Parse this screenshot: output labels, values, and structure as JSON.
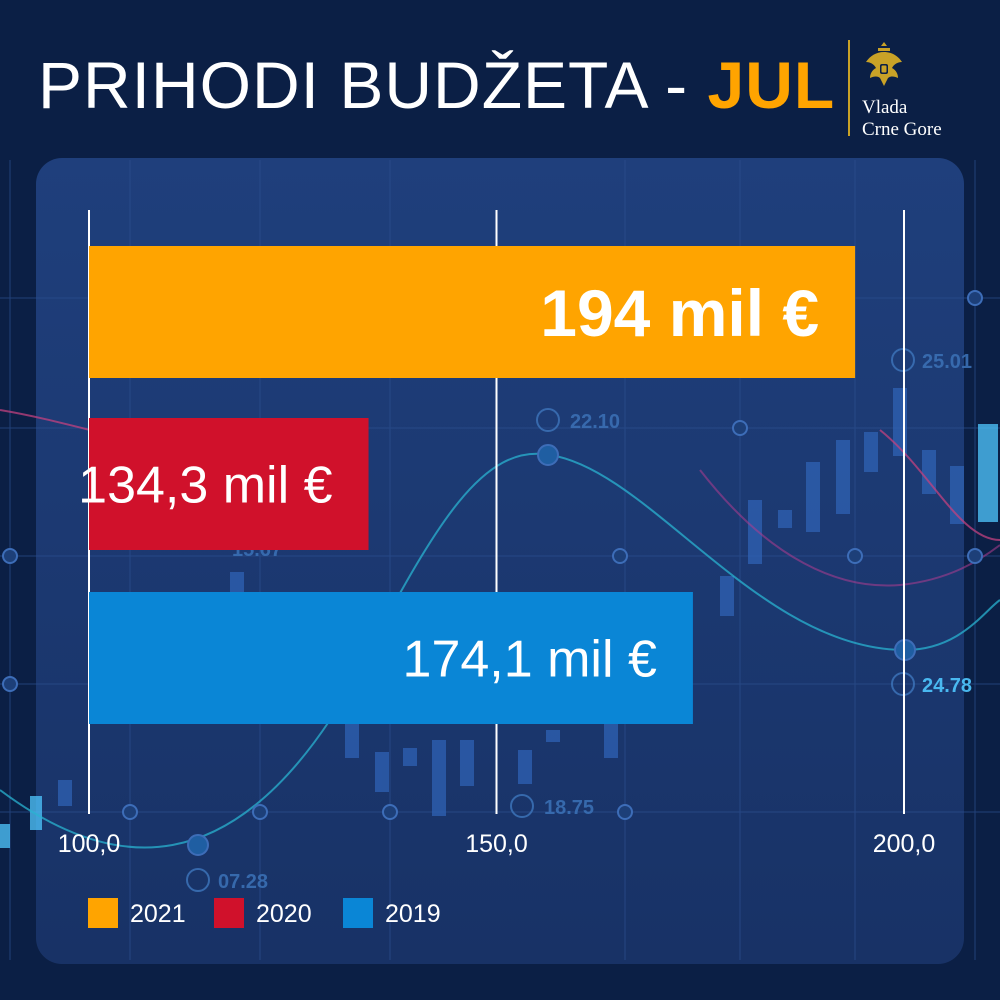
{
  "title": {
    "main": "PRIHODI BUDŽETA - ",
    "accent": "JUL"
  },
  "logo": {
    "icon": "montenegro-coat-of-arms-icon",
    "line1": "Vlada",
    "line2": "Crne Gore",
    "color": "#c9a227"
  },
  "background_decor": {
    "labels": [
      "25.01",
      "22.10",
      "15.67",
      "24.78",
      "18.75",
      "07.28"
    ]
  },
  "chart_data": {
    "type": "bar",
    "orientation": "horizontal",
    "categories": [
      "2021",
      "2020",
      "2019"
    ],
    "values": [
      194,
      134.3,
      174.1
    ],
    "value_labels": [
      "194 mil €",
      "134,3 mil €",
      "174,1 mil €"
    ],
    "colors": [
      "#ffa400",
      "#d0112b",
      "#0a86d6"
    ],
    "xlim": [
      100,
      200
    ],
    "xticks": [
      100,
      150,
      200
    ],
    "xtick_labels": [
      "100,0",
      "150,0",
      "200,0"
    ],
    "grid": true,
    "legend": {
      "placement": "bottom-left",
      "entries": [
        {
          "label": "2021",
          "color": "#ffa400"
        },
        {
          "label": "2020",
          "color": "#d0112b"
        },
        {
          "label": "2019",
          "color": "#0a86d6"
        }
      ]
    }
  }
}
